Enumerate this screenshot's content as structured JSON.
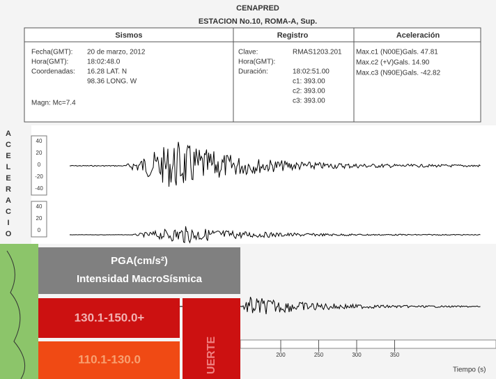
{
  "header": {
    "title": "CENAPRED",
    "station": "ESTACION No.10, ROMA-A, Sup."
  },
  "sismos": {
    "heading": "Sismos",
    "rows": [
      [
        "Fecha(GMT):",
        "20 de marzo, 2012"
      ],
      [
        "Hora(GMT):",
        "18:02:48.0"
      ],
      [
        "Coordenadas:",
        "16.28 LAT. N"
      ],
      [
        "",
        "98.36 LONG. W"
      ]
    ],
    "magnitude": "Magn: Mc=7.4"
  },
  "registro": {
    "heading": "Registro",
    "rows": [
      [
        "Clave:",
        "RMAS1203.201"
      ],
      [
        "Hora(GMT):",
        ""
      ],
      [
        "Duración:",
        "18:02:51.00"
      ],
      [
        "",
        "c1: 393.00"
      ],
      [
        "",
        "c2: 393.00"
      ],
      [
        "",
        "c3: 393.00"
      ]
    ]
  },
  "aceleracion": {
    "heading": "Aceleración",
    "rows": [
      "Max.c1 (N00E)Gals. 47.81",
      "Max.c2 (+V)Gals. 14.90",
      "Max.c3 (N90E)Gals. -42.82"
    ]
  },
  "axis_title": "ACELERACIO",
  "trace1_ticks": [
    "40",
    "20",
    "0",
    "-20",
    "-40"
  ],
  "trace2_ticks": [
    "40",
    "20",
    "0"
  ],
  "time_ticks": [
    "200",
    "250",
    "300",
    "350"
  ],
  "time_label": "Tiempo (s)",
  "legend": {
    "title": "PGA(cm/s²)",
    "subtitle": "Intensidad MacroSísmica",
    "ranges": [
      "130.1-150.0+",
      "110.1-130.0"
    ],
    "intensity": "UERTE"
  }
}
